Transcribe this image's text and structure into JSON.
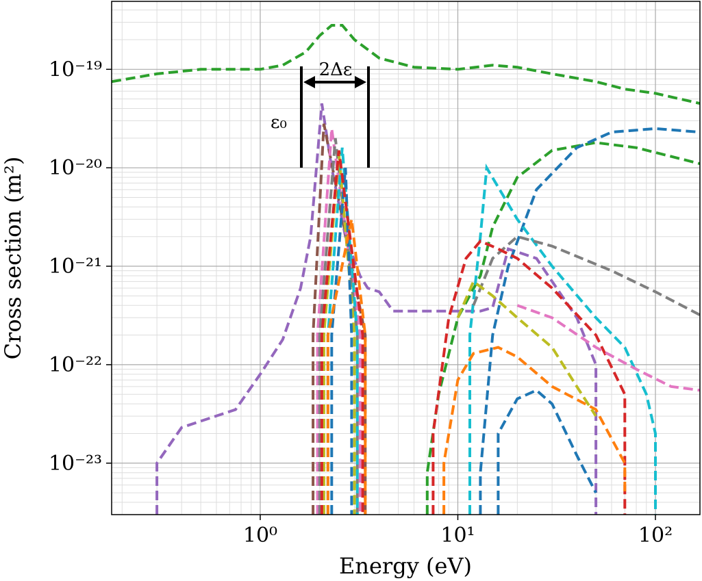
{
  "chart_data": {
    "type": "line",
    "xlabel": "Energy (eV)",
    "ylabel": "Cross section (m²)",
    "xscale": "log",
    "yscale": "log",
    "grid": true,
    "xlim": [
      0.177,
      168
    ],
    "ylim": [
      3e-24,
      4.9e-19
    ],
    "xticks": [
      {
        "value": 1,
        "label": "10⁰"
      },
      {
        "value": 10,
        "label": "10¹"
      },
      {
        "value": 100,
        "label": "10²"
      }
    ],
    "yticks": [
      {
        "value": 1e-23,
        "label": "10⁻²³"
      },
      {
        "value": 1e-22,
        "label": "10⁻²²"
      },
      {
        "value": 1e-21,
        "label": "10⁻²¹"
      },
      {
        "value": 1e-20,
        "label": "10⁻²⁰"
      },
      {
        "value": 1e-19,
        "label": "10⁻¹⁹"
      }
    ],
    "x_minor_ticks": [
      0.2,
      0.3,
      0.4,
      0.5,
      0.6,
      0.7,
      0.8,
      0.9,
      2,
      3,
      4,
      5,
      6,
      7,
      8,
      9,
      20,
      30,
      40,
      50,
      60,
      70,
      80,
      90
    ],
    "y_minor_ticks": [
      4e-24,
      5e-24,
      6e-24,
      7e-24,
      8e-24,
      9e-24,
      2e-23,
      3e-23,
      4e-23,
      5e-23,
      6e-23,
      7e-23,
      8e-23,
      9e-23,
      2e-22,
      3e-22,
      4e-22,
      5e-22,
      6e-22,
      7e-22,
      8e-22,
      9e-22,
      2e-21,
      3e-21,
      4e-21,
      5e-21,
      6e-21,
      7e-21,
      8e-21,
      9e-21,
      2e-20,
      3e-20,
      4e-20,
      5e-20,
      6e-20,
      7e-20,
      8e-20,
      9e-20,
      2e-19,
      3e-19,
      4e-19
    ],
    "annotations": {
      "epsilon": "ε₀",
      "width": "2Δε"
    },
    "series": [
      {
        "color": "#2ca02c",
        "x": [
          0.177,
          0.3,
          0.5,
          1,
          1.3,
          1.7,
          2,
          2.3,
          2.6,
          3,
          4,
          6,
          10,
          15,
          20,
          30,
          50,
          70,
          100,
          168
        ],
        "values": [
          7.5e-20,
          9e-20,
          1e-19,
          1e-19,
          1.1e-19,
          1.5e-19,
          2.2e-19,
          2.8e-19,
          2.8e-19,
          2e-19,
          1.3e-19,
          1.05e-19,
          1e-19,
          1.1e-19,
          1.05e-19,
          9e-20,
          7.5e-20,
          6.3e-20,
          5.7e-20,
          4.5e-20
        ]
      },
      {
        "color": "#9467bd",
        "x": [
          0.3,
          0.3,
          0.4,
          0.75,
          1.0,
          1.3,
          1.6,
          1.8,
          2.05,
          2.3,
          2.7,
          3.2,
          3.5,
          4,
          4.7,
          8,
          13,
          15,
          18,
          25,
          40,
          50,
          50
        ],
        "values": [
          3e-24,
          1e-23,
          2.3e-23,
          3.5e-23,
          8e-23,
          1.8e-22,
          6e-22,
          2e-21,
          4.5e-20,
          1e-20,
          2e-21,
          8e-22,
          6e-22,
          5.5e-22,
          3.5e-22,
          3.5e-22,
          3.5e-22,
          3.8e-22,
          1.5e-21,
          1.2e-21,
          3e-22,
          1e-22,
          3e-24
        ]
      },
      {
        "color": "#8c564b",
        "x": [
          1.85,
          1.85,
          2.1,
          3.4,
          3.4
        ],
        "values": [
          3e-24,
          2e-22,
          2.8e-20,
          2e-22,
          3e-24
        ]
      },
      {
        "color": "#e377c2",
        "x": [
          1.95,
          1.95,
          2.3,
          3.2,
          3.2
        ],
        "values": [
          3e-24,
          2e-22,
          2.5e-20,
          2e-22,
          3e-24
        ]
      },
      {
        "color": "#7f7f7f",
        "x": [
          2.0,
          2.0,
          2.4,
          3.1,
          3.1
        ],
        "values": [
          3e-24,
          2e-22,
          2e-20,
          2e-22,
          3e-24
        ]
      },
      {
        "color": "#bcbd22",
        "x": [
          2.1,
          2.1,
          2.5,
          3.0,
          3.0
        ],
        "values": [
          3e-24,
          2e-22,
          1.4e-20,
          2e-22,
          3e-24
        ]
      },
      {
        "color": "#17becf",
        "x": [
          2.2,
          2.2,
          2.6,
          3.1,
          3.1
        ],
        "values": [
          3e-24,
          2e-22,
          1.6e-20,
          2e-22,
          3e-24
        ]
      },
      {
        "color": "#1f77b4",
        "x": [
          2.3,
          2.3,
          2.7,
          2.9,
          2.9
        ],
        "values": [
          3e-24,
          2e-22,
          1e-20,
          2e-22,
          3e-24
        ]
      },
      {
        "color": "#ff7f0e",
        "x": [
          2.2,
          2.2,
          2.9,
          3.4,
          3.4
        ],
        "values": [
          3e-24,
          2e-22,
          3e-21,
          2e-22,
          3e-24
        ]
      },
      {
        "color": "#d62728",
        "x": [
          2.05,
          2.05,
          2.5,
          3.3,
          3.3
        ],
        "values": [
          3e-24,
          2e-22,
          1.5e-20,
          2e-22,
          3e-24
        ]
      },
      {
        "color": "#2ca02c",
        "x": [
          7,
          7,
          8,
          10,
          13,
          15,
          20,
          30,
          50,
          80,
          168
        ],
        "values": [
          3e-24,
          8e-24,
          5e-23,
          3e-22,
          8e-22,
          2.5e-21,
          8e-21,
          1.5e-20,
          1.8e-20,
          1.6e-20,
          1.1e-20
        ]
      },
      {
        "color": "#1f77b4",
        "x": [
          13,
          13,
          15,
          18,
          25,
          40,
          60,
          100,
          168
        ],
        "values": [
          3e-24,
          8e-24,
          2e-22,
          1e-21,
          6e-21,
          1.6e-20,
          2.3e-20,
          2.5e-20,
          2.3e-20
        ]
      },
      {
        "color": "#17becf",
        "x": [
          11.5,
          11.5,
          13,
          14,
          20,
          30,
          50,
          70,
          90,
          100,
          100
        ],
        "values": [
          3e-24,
          2e-22,
          2e-21,
          1e-20,
          3e-21,
          1e-21,
          3e-22,
          1.5e-22,
          5e-23,
          2e-23,
          3e-24
        ]
      },
      {
        "color": "#7f7f7f",
        "x": [
          12,
          15,
          20,
          30,
          60,
          100,
          168
        ],
        "values": [
          4e-22,
          1.2e-21,
          2e-21,
          1.6e-21,
          9e-22,
          5.5e-22,
          3.2e-22
        ]
      },
      {
        "color": "#d62728",
        "x": [
          7.5,
          7.5,
          9,
          11,
          13,
          16,
          20,
          30,
          50,
          70,
          70
        ],
        "values": [
          3e-24,
          2e-23,
          3e-22,
          1.2e-21,
          1.8e-21,
          1.5e-21,
          1.2e-21,
          6e-22,
          2e-22,
          5e-23,
          3e-24
        ]
      },
      {
        "color": "#ff7f0e",
        "x": [
          8.5,
          8.5,
          10,
          12,
          16,
          20,
          30,
          50,
          70,
          70
        ],
        "values": [
          3e-24,
          1e-23,
          7e-23,
          1.3e-22,
          1.5e-22,
          1.2e-22,
          6e-23,
          3.5e-23,
          1e-23,
          5e-24
        ]
      },
      {
        "color": "#e377c2",
        "x": [
          20,
          30,
          50,
          80,
          120,
          168
        ],
        "values": [
          4e-22,
          3e-22,
          1.5e-22,
          9e-23,
          6e-23,
          5.5e-23
        ]
      },
      {
        "color": "#bcbd22",
        "x": [
          10,
          12,
          15,
          20,
          30,
          40,
          50
        ],
        "values": [
          3e-22,
          7e-22,
          5e-22,
          3e-22,
          1.5e-22,
          6e-23,
          3e-23
        ]
      },
      {
        "color": "#1f77b4",
        "x": [
          16,
          16,
          20,
          25,
          30,
          40,
          50
        ],
        "values": [
          3e-24,
          2e-23,
          4.5e-23,
          5.5e-23,
          4e-23,
          1.2e-23,
          5e-24
        ]
      }
    ]
  }
}
